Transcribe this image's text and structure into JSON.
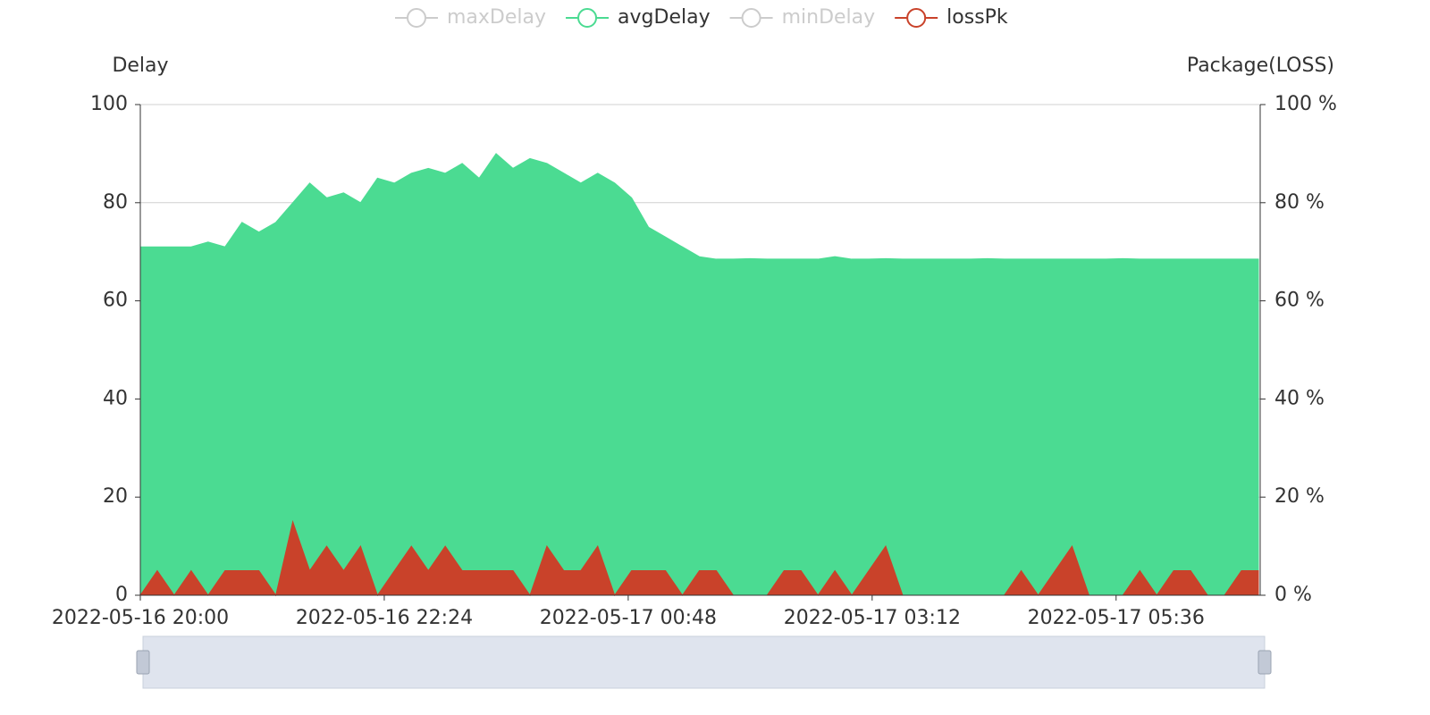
{
  "chart_data": {
    "type": "area",
    "legend": [
      {
        "name": "maxDelay",
        "selected": false
      },
      {
        "name": "avgDelay",
        "selected": true
      },
      {
        "name": "minDelay",
        "selected": false
      },
      {
        "name": "lossPk",
        "selected": true
      }
    ],
    "y_label": "Delay",
    "y2_label": "Package(LOSS)",
    "x": [
      "2022-05-16 20:00",
      "2022-05-16 20:10",
      "2022-05-16 20:20",
      "2022-05-16 20:30",
      "2022-05-16 20:40",
      "2022-05-16 20:50",
      "2022-05-16 21:00",
      "2022-05-16 21:10",
      "2022-05-16 21:20",
      "2022-05-16 21:30",
      "2022-05-16 21:40",
      "2022-05-16 21:50",
      "2022-05-16 22:00",
      "2022-05-16 22:10",
      "2022-05-16 22:20",
      "2022-05-16 22:30",
      "2022-05-16 22:40",
      "2022-05-16 22:50",
      "2022-05-16 23:00",
      "2022-05-16 23:10",
      "2022-05-16 23:20",
      "2022-05-16 23:30",
      "2022-05-16 23:40",
      "2022-05-16 23:50",
      "2022-05-17 00:00",
      "2022-05-17 00:10",
      "2022-05-17 00:20",
      "2022-05-17 00:30",
      "2022-05-17 00:40",
      "2022-05-17 00:50",
      "2022-05-17 01:00",
      "2022-05-17 01:10",
      "2022-05-17 01:20",
      "2022-05-17 01:30",
      "2022-05-17 01:40",
      "2022-05-17 01:50",
      "2022-05-17 02:00",
      "2022-05-17 02:10",
      "2022-05-17 02:20",
      "2022-05-17 02:30",
      "2022-05-17 02:40",
      "2022-05-17 02:50",
      "2022-05-17 03:00",
      "2022-05-17 03:10",
      "2022-05-17 03:20",
      "2022-05-17 03:30",
      "2022-05-17 03:40",
      "2022-05-17 03:50",
      "2022-05-17 04:00",
      "2022-05-17 04:10",
      "2022-05-17 04:20",
      "2022-05-17 04:30",
      "2022-05-17 04:40",
      "2022-05-17 04:50",
      "2022-05-17 05:00",
      "2022-05-17 05:10",
      "2022-05-17 05:20",
      "2022-05-17 05:30",
      "2022-05-17 05:40",
      "2022-05-17 05:50",
      "2022-05-17 06:00",
      "2022-05-17 06:10",
      "2022-05-17 06:20",
      "2022-05-17 06:30",
      "2022-05-17 06:40",
      "2022-05-17 06:50",
      "2022-05-17 07:00"
    ],
    "series": [
      {
        "name": "avgDelay",
        "color": "#4bdb92",
        "values": [
          71,
          71,
          71,
          71,
          72,
          71,
          76,
          74,
          76,
          80,
          84,
          81,
          82,
          80,
          85,
          84,
          86,
          87,
          86,
          88,
          85,
          90,
          87,
          89,
          88,
          86,
          84,
          86,
          84,
          81,
          75,
          73,
          71,
          69,
          68.5,
          68.5,
          68.6,
          68.5,
          68.5,
          68.5,
          68.5,
          69,
          68.5,
          68.5,
          68.6,
          68.5,
          68.5,
          68.5,
          68.5,
          68.5,
          68.6,
          68.5,
          68.5,
          68.5,
          68.5,
          68.5,
          68.5,
          68.5,
          68.6,
          68.5,
          68.5,
          68.5,
          68.5,
          68.5,
          68.5,
          68.5,
          68.5
        ]
      },
      {
        "name": "lossPk",
        "color": "#c9422a",
        "axis": "y2",
        "values": [
          0,
          5,
          0,
          5,
          0,
          5,
          5,
          5,
          0,
          15,
          5,
          10,
          5,
          10,
          0,
          5,
          10,
          5,
          10,
          5,
          5,
          5,
          5,
          0,
          10,
          5,
          5,
          10,
          0,
          5,
          5,
          5,
          0,
          5,
          5,
          0,
          0,
          0,
          5,
          5,
          0,
          5,
          0,
          5,
          10,
          0,
          0,
          0,
          0,
          0,
          0,
          0,
          5,
          0,
          5,
          10,
          0,
          0,
          0,
          5,
          0,
          5,
          5,
          0,
          0,
          5,
          5
        ]
      }
    ],
    "xlim": [
      "2022-05-16 20:00",
      "2022-05-17 07:00"
    ],
    "xticks": [
      "2022-05-16 20:00",
      "2022-05-16 22:24",
      "2022-05-17 00:48",
      "2022-05-17 03:12",
      "2022-05-17 05:36"
    ],
    "ylim": [
      0,
      100
    ],
    "yticks": [
      0,
      20,
      40,
      60,
      80,
      100
    ],
    "y2lim": [
      0,
      100
    ],
    "y2ticks": [
      {
        "value": 0,
        "label": "0 %"
      },
      {
        "value": 20,
        "label": "20 %"
      },
      {
        "value": 40,
        "label": "40 %"
      },
      {
        "value": 60,
        "label": "60 %"
      },
      {
        "value": 80,
        "label": "80 %"
      },
      {
        "value": 100,
        "label": "100 %"
      }
    ],
    "grid": true
  }
}
